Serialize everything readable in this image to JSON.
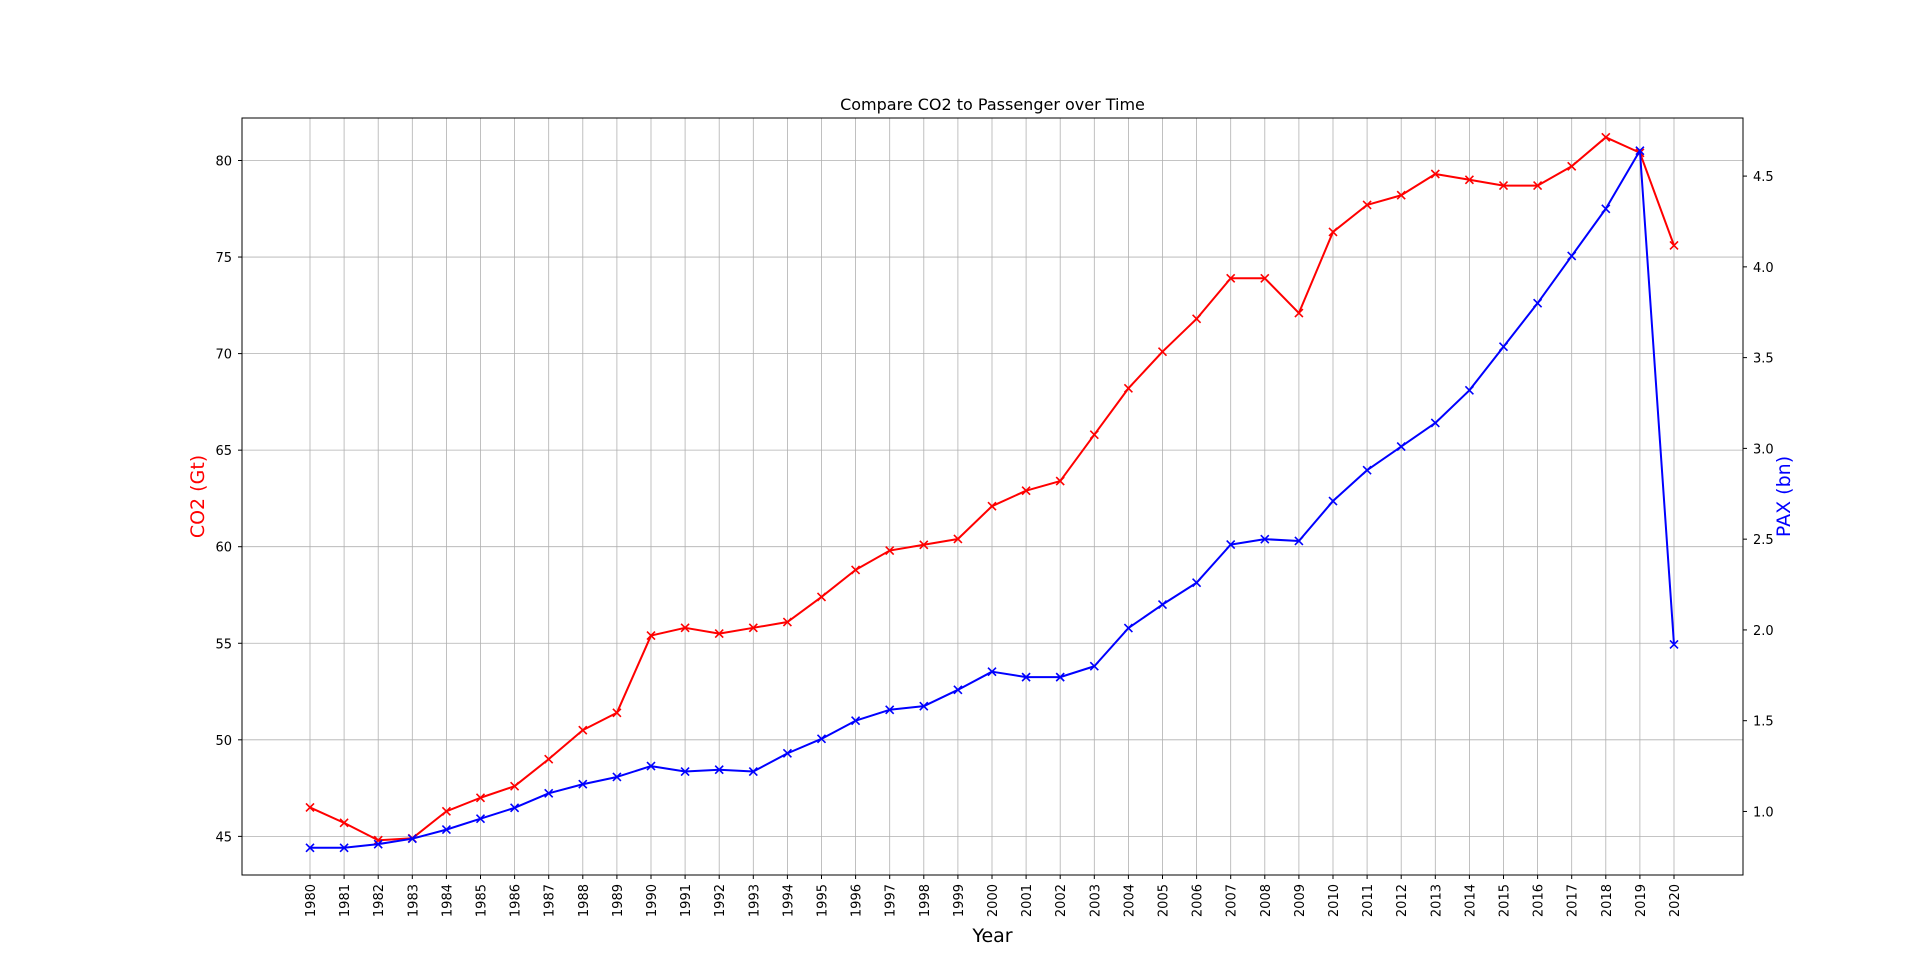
{
  "chart_data": {
    "type": "line",
    "title": "Compare CO2 to Passenger over Time",
    "xlabel": "Year",
    "ylabel_left": "CO2 (Gt)",
    "ylabel_right": "PAX (bn)",
    "grid": true,
    "x": [
      1980,
      1981,
      1982,
      1983,
      1984,
      1985,
      1986,
      1987,
      1988,
      1989,
      1990,
      1991,
      1992,
      1993,
      1994,
      1995,
      1996,
      1997,
      1998,
      1999,
      2000,
      2001,
      2002,
      2003,
      2004,
      2005,
      2006,
      2007,
      2008,
      2009,
      2010,
      2011,
      2012,
      2013,
      2014,
      2015,
      2016,
      2017,
      2018,
      2019,
      2020
    ],
    "x_ticks": [
      "1980",
      "1981",
      "1982",
      "1983",
      "1984",
      "1985",
      "1986",
      "1987",
      "1988",
      "1989",
      "1990",
      "1991",
      "1992",
      "1993",
      "1994",
      "1995",
      "1996",
      "1997",
      "1998",
      "1999",
      "2000",
      "2001",
      "2002",
      "2003",
      "2004",
      "2005",
      "2006",
      "2007",
      "2008",
      "2009",
      "2010",
      "2011",
      "2012",
      "2013",
      "2014",
      "2015",
      "2016",
      "2017",
      "2018",
      "2019",
      "2020"
    ],
    "ylim_left": [
      43.0,
      82.2
    ],
    "ylim_right": [
      0.65,
      4.82
    ],
    "yticks_left": [
      "45",
      "50",
      "55",
      "60",
      "65",
      "70",
      "75",
      "80"
    ],
    "yticks_right": [
      "1.0",
      "1.5",
      "2.0",
      "2.5",
      "3.0",
      "3.5",
      "4.0",
      "4.5"
    ],
    "series": [
      {
        "axis": "left",
        "color": "#ff0000",
        "marker": "x",
        "values": [
          46.5,
          45.7,
          44.8,
          44.9,
          46.3,
          47.0,
          47.6,
          49.0,
          50.5,
          51.4,
          55.4,
          55.8,
          55.5,
          55.8,
          56.1,
          57.4,
          58.8,
          59.8,
          60.1,
          60.4,
          62.1,
          62.9,
          63.4,
          65.8,
          68.2,
          70.1,
          71.8,
          73.9,
          73.9,
          72.1,
          76.3,
          77.7,
          78.2,
          79.3,
          79.0,
          78.7,
          78.7,
          79.7,
          81.2,
          80.4,
          75.6
        ]
      },
      {
        "axis": "right",
        "color": "#0000ff",
        "marker": "x",
        "values": [
          0.8,
          0.8,
          0.82,
          0.85,
          0.9,
          0.96,
          1.02,
          1.1,
          1.15,
          1.19,
          1.25,
          1.22,
          1.23,
          1.22,
          1.32,
          1.4,
          1.5,
          1.56,
          1.58,
          1.67,
          1.77,
          1.74,
          1.74,
          1.8,
          2.01,
          2.14,
          2.26,
          2.47,
          2.5,
          2.49,
          2.71,
          2.88,
          3.01,
          3.14,
          3.32,
          3.56,
          3.8,
          4.06,
          4.32,
          4.64,
          1.92
        ]
      }
    ]
  }
}
